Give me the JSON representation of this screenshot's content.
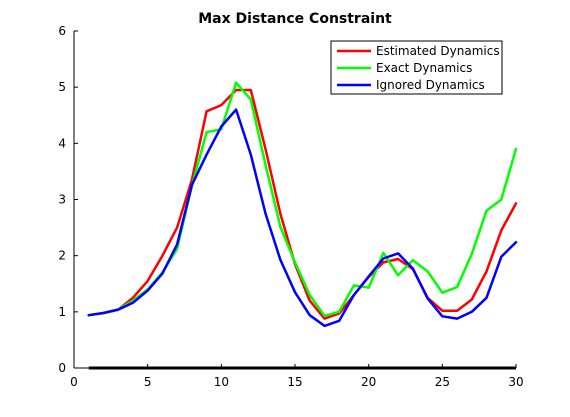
{
  "chart_data": {
    "type": "line",
    "title": "Max Distance Constraint",
    "xlabel": "",
    "ylabel": "",
    "xlim": [
      0,
      30
    ],
    "ylim": [
      0,
      6
    ],
    "xticks": [
      0,
      5,
      10,
      15,
      20,
      25,
      30
    ],
    "yticks": [
      0,
      1,
      2,
      3,
      4,
      5,
      6
    ],
    "grid": false,
    "legend_position": "top-right",
    "x": [
      1,
      2,
      3,
      4,
      5,
      6,
      7,
      8,
      9,
      10,
      11,
      12,
      13,
      14,
      15,
      16,
      17,
      18,
      19,
      20,
      21,
      22,
      23,
      24,
      25,
      26,
      27,
      28,
      29,
      30
    ],
    "series": [
      {
        "name": "Estimated Dynamics",
        "color": "#ff0000",
        "values": [
          0.94,
          0.98,
          1.04,
          1.25,
          1.55,
          2.0,
          2.5,
          3.35,
          4.57,
          4.68,
          4.95,
          4.95,
          3.9,
          2.75,
          1.85,
          1.2,
          0.88,
          0.97,
          1.3,
          1.62,
          1.88,
          1.94,
          1.76,
          1.25,
          1.02,
          1.02,
          1.22,
          1.72,
          2.45,
          2.93
        ]
      },
      {
        "name": "Exact Dynamics",
        "color": "#00ff00",
        "values": [
          0.94,
          0.98,
          1.04,
          1.2,
          1.4,
          1.7,
          2.12,
          3.24,
          4.2,
          4.25,
          5.08,
          4.78,
          3.62,
          2.52,
          1.88,
          1.3,
          0.93,
          1.0,
          1.47,
          1.43,
          2.05,
          1.65,
          1.92,
          1.72,
          1.34,
          1.44,
          2.03,
          2.8,
          3.0,
          3.9
        ]
      },
      {
        "name": "Ignored Dynamics",
        "color": "#0000ff",
        "values": [
          0.94,
          0.98,
          1.04,
          1.16,
          1.38,
          1.68,
          2.2,
          3.26,
          3.8,
          4.3,
          4.6,
          3.8,
          2.75,
          1.93,
          1.35,
          0.94,
          0.75,
          0.84,
          1.3,
          1.63,
          1.95,
          2.04,
          1.77,
          1.24,
          0.92,
          0.88,
          1.0,
          1.25,
          1.98,
          2.24
        ]
      }
    ],
    "baseline": {
      "color": "#000000",
      "x": [
        1,
        30
      ],
      "values": [
        0,
        0
      ]
    }
  }
}
